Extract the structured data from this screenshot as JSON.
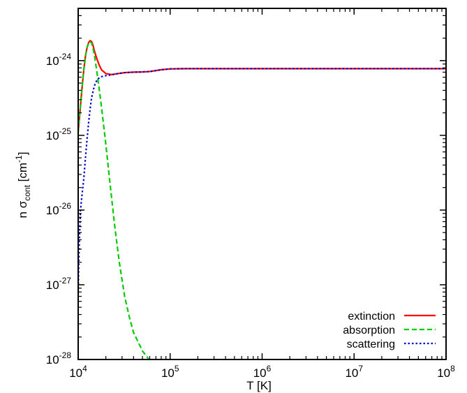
{
  "chart_data": {
    "type": "line",
    "title": "",
    "xlabel": "T [K]",
    "ylabel": {
      "base": "n σ",
      "sub": "cont",
      "unit_open": " [cm",
      "sup": "-1",
      "unit_close": "]"
    },
    "x_scale": "log",
    "y_scale": "log",
    "xlim": [
      10000,
      100000000
    ],
    "ylim": [
      1e-28,
      5e-24
    ],
    "x_ticks": [
      {
        "value": 10000,
        "base": "10",
        "exp": "4"
      },
      {
        "value": 100000,
        "base": "10",
        "exp": "5"
      },
      {
        "value": 1000000,
        "base": "10",
        "exp": "6"
      },
      {
        "value": 10000000,
        "base": "10",
        "exp": "7"
      },
      {
        "value": 100000000,
        "base": "10",
        "exp": "8"
      }
    ],
    "y_ticks": [
      {
        "value": 1e-28,
        "base": "10",
        "exp": "-28"
      },
      {
        "value": 1e-27,
        "base": "10",
        "exp": "-27"
      },
      {
        "value": 1e-26,
        "base": "10",
        "exp": "-26"
      },
      {
        "value": 1e-25,
        "base": "10",
        "exp": "-25"
      },
      {
        "value": 1e-24,
        "base": "10",
        "exp": "-24"
      }
    ],
    "grid": false,
    "legend_position": "bottom-right",
    "series": [
      {
        "name": "extinction",
        "color": "#ff0000",
        "style": "solid",
        "x": [
          10000,
          10500,
          11000,
          11500,
          12000,
          12500,
          13000,
          13500,
          14000,
          14500,
          15000,
          16000,
          17000,
          18000,
          20000,
          23000,
          27000,
          32000,
          40000,
          50000,
          60000,
          70000,
          80000,
          100000,
          150000,
          300000,
          1000000,
          10000000,
          100000000
        ],
        "y": [
          1.1e-25,
          2.2e-25,
          4.2e-25,
          7.5e-25,
          1.15e-24,
          1.5e-24,
          1.75e-24,
          1.85e-24,
          1.8e-24,
          1.6e-24,
          1.35e-24,
          1.05e-24,
          8.6e-25,
          7.5e-25,
          6.7e-25,
          6.5e-25,
          6.7e-25,
          6.9e-25,
          7e-25,
          7.05e-25,
          7.15e-25,
          7.35e-25,
          7.55e-25,
          7.75e-25,
          7.8e-25,
          7.8e-25,
          7.8e-25,
          7.8e-25,
          7.8e-25
        ]
      },
      {
        "name": "absorption",
        "color": "#00cc00",
        "style": "dashed",
        "x": [
          10000,
          10500,
          11000,
          11500,
          12000,
          12500,
          13000,
          13500,
          14000,
          14500,
          15000,
          16000,
          17000,
          18000,
          20000,
          22000,
          25000,
          28000,
          32000,
          36000,
          40000,
          45000,
          50000,
          55000,
          59000
        ],
        "y": [
          1.1e-25,
          2.2e-25,
          4.2e-25,
          7.5e-25,
          1.15e-24,
          1.5e-24,
          1.72e-24,
          1.8e-24,
          1.72e-24,
          1.45e-24,
          1.2e-24,
          7e-25,
          4e-25,
          2.3e-25,
          7.5e-26,
          2.5e-26,
          6e-27,
          2e-27,
          7e-28,
          3.7e-28,
          2.3e-28,
          1.7e-28,
          1.3e-28,
          1.12e-28,
          1e-28
        ]
      },
      {
        "name": "scattering",
        "color": "#0000cc",
        "style": "dotted",
        "x": [
          10000,
          10300,
          10600,
          11000,
          11500,
          12000,
          12500,
          13000,
          13500,
          14000,
          15000,
          16000,
          17000,
          18000,
          20000,
          23000,
          27000,
          32000,
          40000,
          50000,
          60000,
          70000,
          80000,
          100000,
          150000,
          300000,
          1000000,
          10000000,
          100000000
        ],
        "y": [
          8e-28,
          4e-27,
          1e-26,
          1.6e-26,
          2.6e-26,
          5e-26,
          9e-26,
          1.5e-25,
          2.3e-25,
          3.2e-25,
          4.6e-25,
          5.5e-25,
          5.9e-25,
          6.1e-25,
          6.3e-25,
          6.45e-25,
          6.7e-25,
          6.9e-25,
          7e-25,
          7.05e-25,
          7.15e-25,
          7.35e-25,
          7.55e-25,
          7.75e-25,
          7.8e-25,
          7.8e-25,
          7.8e-25,
          7.8e-25,
          7.8e-25
        ]
      }
    ]
  }
}
